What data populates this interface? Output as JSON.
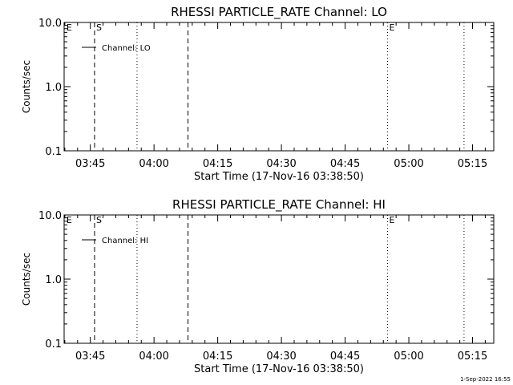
{
  "colors": {
    "background": "#ffffff",
    "foreground": "#000000"
  },
  "footer": {
    "timestamp": "1-Sep-2022 16:55"
  },
  "chart_data": [
    {
      "type": "line",
      "title": "RHESSI PARTICLE_RATE Channel: LO",
      "xlabel": "Start Time (17-Nov-16 03:38:50)",
      "ylabel": "Counts/sec",
      "y_scale": "log",
      "ylim": [
        0.1,
        10.0
      ],
      "xlim": [
        "03:38:50",
        "05:20:00"
      ],
      "x_ticks": [
        "03:45",
        "04:00",
        "04:15",
        "04:30",
        "04:45",
        "05:00",
        "05:15"
      ],
      "y_ticks": [
        "0.1",
        "1.0",
        "10.0"
      ],
      "legend": {
        "position": "top-left",
        "entries": [
          "Channel: LO"
        ]
      },
      "series": [
        {
          "name": "Channel: LO",
          "x": [],
          "y": []
        }
      ],
      "annotations": [
        {
          "label": "E",
          "time": "03:39:00",
          "style": "none"
        },
        {
          "label": "S",
          "time": "03:46:00",
          "style": "dashed"
        },
        {
          "label": "",
          "time": "03:56:00",
          "style": "dotted"
        },
        {
          "label": "",
          "time": "04:08:00",
          "style": "dashed"
        },
        {
          "label": "E",
          "time": "04:55:00",
          "style": "dotted"
        },
        {
          "label": "",
          "time": "05:13:00",
          "style": "dotted"
        }
      ]
    },
    {
      "type": "line",
      "title": "RHESSI PARTICLE_RATE Channel: HI",
      "xlabel": "Start Time (17-Nov-16 03:38:50)",
      "ylabel": "Counts/sec",
      "y_scale": "log",
      "ylim": [
        0.1,
        10.0
      ],
      "xlim": [
        "03:38:50",
        "05:20:00"
      ],
      "x_ticks": [
        "03:45",
        "04:00",
        "04:15",
        "04:30",
        "04:45",
        "05:00",
        "05:15"
      ],
      "y_ticks": [
        "0.1",
        "1.0",
        "10.0"
      ],
      "legend": {
        "position": "top-left",
        "entries": [
          "Channel: HI"
        ]
      },
      "series": [
        {
          "name": "Channel: HI",
          "x": [],
          "y": []
        }
      ],
      "annotations": [
        {
          "label": "E",
          "time": "03:39:00",
          "style": "none"
        },
        {
          "label": "S",
          "time": "03:46:00",
          "style": "dashed"
        },
        {
          "label": "",
          "time": "03:56:00",
          "style": "dotted"
        },
        {
          "label": "",
          "time": "04:08:00",
          "style": "dashed"
        },
        {
          "label": "E",
          "time": "04:55:00",
          "style": "dotted"
        },
        {
          "label": "",
          "time": "05:13:00",
          "style": "dotted"
        }
      ]
    }
  ]
}
